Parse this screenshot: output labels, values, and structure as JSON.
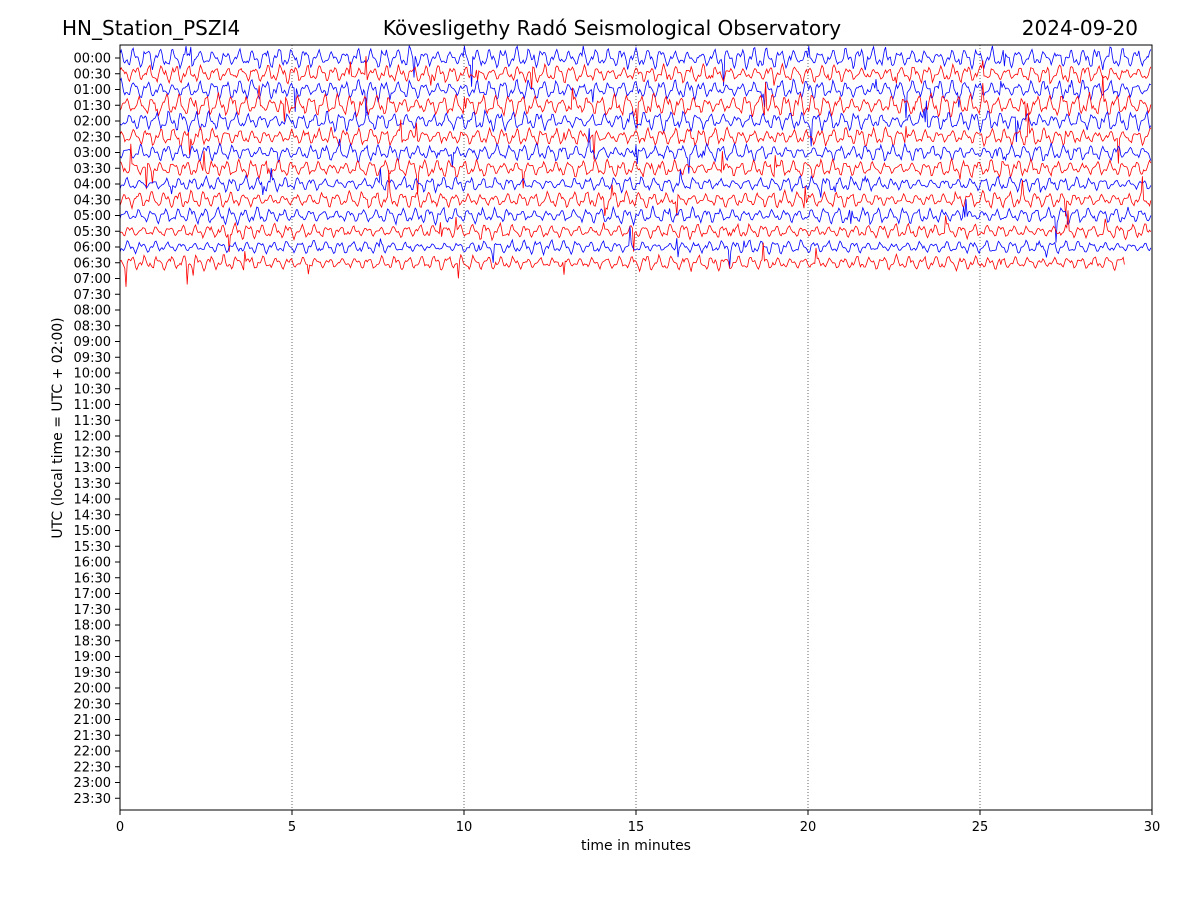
{
  "header": {
    "station": "HN_Station_PSZI4",
    "observatory": "Kövesligethy Radó Seismological Observatory",
    "date": "2024-09-20"
  },
  "chart_data": {
    "type": "line",
    "title": "Kövesligethy Radó Seismological Observatory",
    "xlabel": "time in minutes",
    "ylabel": "UTC (local time = UTC + 02:00)",
    "xlim": [
      0,
      30
    ],
    "x_ticks": [
      0,
      5,
      10,
      15,
      20,
      25,
      30
    ],
    "x_tick_labels": [
      "0",
      "5",
      "10",
      "15",
      "20",
      "25",
      "30"
    ],
    "y_tick_labels": [
      "00:00",
      "00:30",
      "01:00",
      "01:30",
      "02:00",
      "02:30",
      "03:00",
      "03:30",
      "04:00",
      "04:30",
      "05:00",
      "05:30",
      "06:00",
      "06:30",
      "07:00",
      "07:30",
      "08:00",
      "08:30",
      "09:00",
      "09:30",
      "10:00",
      "10:30",
      "11:00",
      "11:30",
      "12:00",
      "12:30",
      "13:00",
      "13:30",
      "14:00",
      "14:30",
      "15:00",
      "15:30",
      "16:00",
      "16:30",
      "17:00",
      "17:30",
      "18:00",
      "18:30",
      "19:00",
      "19:30",
      "20:00",
      "20:30",
      "21:00",
      "21:30",
      "22:00",
      "22:30",
      "23:00",
      "23:30"
    ],
    "grid": "vertical dotted lines at x ticks",
    "colors": {
      "even_rows": "#0000ff",
      "odd_rows": "#ff0000"
    },
    "series": [
      {
        "start": "00:00",
        "color": "#0000ff",
        "end_minute": 30,
        "amplitude": 1.4
      },
      {
        "start": "00:30",
        "color": "#ff0000",
        "end_minute": 30,
        "amplitude": 1.2
      },
      {
        "start": "01:00",
        "color": "#0000ff",
        "end_minute": 30,
        "amplitude": 1.3
      },
      {
        "start": "01:30",
        "color": "#ff0000",
        "end_minute": 30,
        "amplitude": 1.5
      },
      {
        "start": "02:00",
        "color": "#0000ff",
        "end_minute": 30,
        "amplitude": 1.3
      },
      {
        "start": "02:30",
        "color": "#ff0000",
        "end_minute": 30,
        "amplitude": 1.2
      },
      {
        "start": "03:00",
        "color": "#0000ff",
        "end_minute": 30,
        "amplitude": 1.1
      },
      {
        "start": "03:30",
        "color": "#ff0000",
        "end_minute": 30,
        "amplitude": 1.2
      },
      {
        "start": "04:00",
        "color": "#0000ff",
        "end_minute": 30,
        "amplitude": 1.0
      },
      {
        "start": "04:30",
        "color": "#ff0000",
        "end_minute": 30,
        "amplitude": 1.1
      },
      {
        "start": "05:00",
        "color": "#0000ff",
        "end_minute": 30,
        "amplitude": 1.1
      },
      {
        "start": "05:30",
        "color": "#ff0000",
        "end_minute": 30,
        "amplitude": 1.0
      },
      {
        "start": "06:00",
        "color": "#0000ff",
        "end_minute": 30,
        "amplitude": 0.9
      },
      {
        "start": "06:30",
        "color": "#ff0000",
        "end_minute": 29.2,
        "amplitude": 1.0
      }
    ]
  }
}
